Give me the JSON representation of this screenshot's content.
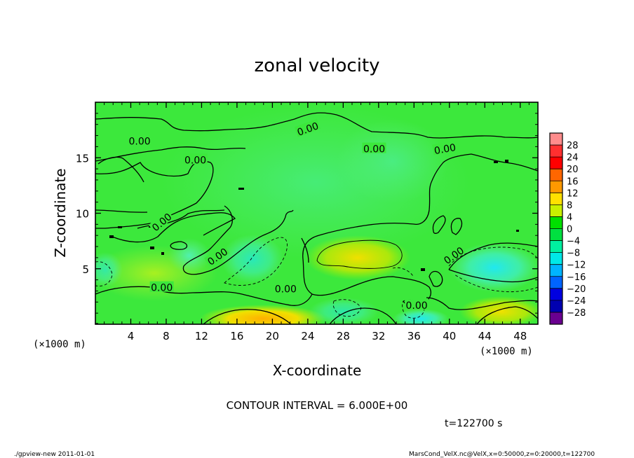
{
  "chart_data": {
    "type": "heatmap",
    "title": "zonal velocity",
    "xlabel": "X-coordinate",
    "ylabel": "Z-coordinate",
    "x_unit": "(×1000 m)",
    "x_unit_right": "(×1000 m)",
    "y_unit": "(×1000 m)",
    "xlim": [
      0,
      50
    ],
    "ylim": [
      0,
      20
    ],
    "x_ticks": [
      4,
      8,
      12,
      16,
      20,
      24,
      28,
      32,
      36,
      40,
      44,
      48
    ],
    "y_ticks": [
      5,
      10,
      15
    ],
    "contour_label": "0.00",
    "contour_interval_text": "CONTOUR INTERVAL = 6.000E+00",
    "time_text": "t=122700 s",
    "colorbar": {
      "levels": [
        28,
        24,
        20,
        16,
        12,
        8,
        4,
        0,
        -4,
        -8,
        -12,
        -16,
        -20,
        -24,
        -28
      ],
      "labels": [
        "28",
        "24",
        "20",
        "16",
        "12",
        "8",
        "4",
        "0",
        "−4",
        "−8",
        "−12",
        "−16",
        "−20",
        "−24",
        "−28"
      ],
      "colors": [
        "#ff8c8c",
        "#ff3030",
        "#ff0000",
        "#ff6600",
        "#ff9900",
        "#ffe000",
        "#c8f000",
        "#00e000",
        "#00e040",
        "#00f0a0",
        "#00e8e8",
        "#00b4ff",
        "#0064ff",
        "#0000e0",
        "#0000b0",
        "#6a0090"
      ]
    },
    "field_regions": [
      {
        "x": 25,
        "z": 10,
        "value": 0,
        "level": "0 to 4"
      },
      {
        "x": 29,
        "z": 6.2,
        "value": 8,
        "level": "4 to 8"
      },
      {
        "x": 18,
        "z": 0.5,
        "value": 10,
        "level": "8 to 12"
      },
      {
        "x": 10,
        "z": 4.5,
        "value": 4,
        "level": "4 to 8"
      },
      {
        "x": 45,
        "z": 5.2,
        "value": -10,
        "level": "-12 to -8"
      },
      {
        "x": 18,
        "z": 5.5,
        "value": -8,
        "level": "-8 to -4"
      },
      {
        "x": 30,
        "z": 1,
        "value": -6,
        "level": "-8 to -4"
      },
      {
        "x": 38,
        "z": 0.6,
        "value": -8,
        "level": "-12 to -8"
      },
      {
        "x": 46,
        "z": 1,
        "value": 8,
        "level": "4 to 8"
      }
    ]
  },
  "footer": {
    "left": "./gpview-new  2011-01-01",
    "right": "MarsCond_VelX.nc@VelX,x=0:50000,z=0:20000,t=122700"
  }
}
